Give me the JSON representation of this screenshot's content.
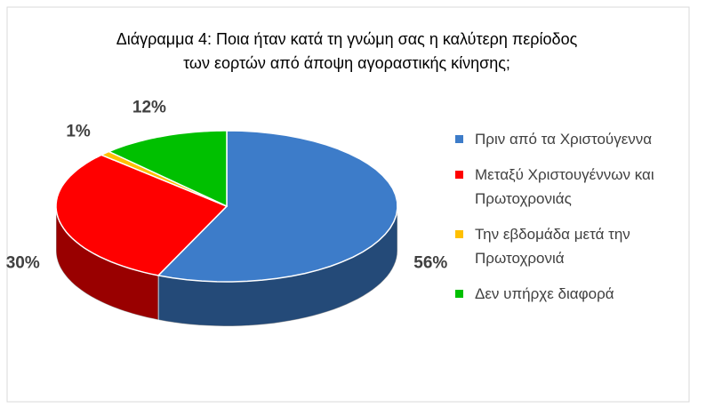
{
  "chart_data": {
    "type": "pie3d",
    "title": [
      "Διάγραμμα 4: Ποια ήταν κατά τη γνώμη σας η καλύτερη περίοδος",
      "των εορτών από άποψη αγοραστικής κίνησης;"
    ],
    "categories": [
      "Πριν από τα Χριστούγεννα",
      "Μεταξύ Χριστουγέννων και Πρωτοχρονιάς",
      "Την εβδομάδα μετά την Πρωτοχρονιά",
      "Δεν υπήρχε διαφορά"
    ],
    "values": [
      56,
      30,
      1,
      12
    ],
    "value_labels": [
      "56%",
      "30%",
      "1%",
      "12%"
    ],
    "colors": [
      "#3d7cc9",
      "#ff0000",
      "#ffc000",
      "#00c000"
    ],
    "legend": "right"
  }
}
